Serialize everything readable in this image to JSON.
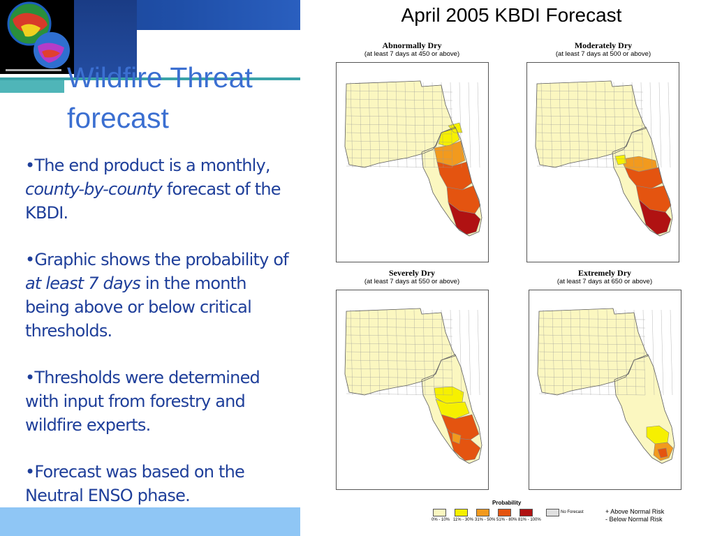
{
  "slide": {
    "title_line1": "Wildfire Threat",
    "title_line2": "forecast",
    "bullets": [
      {
        "parts": [
          "•The end product is a monthly, ",
          "county-by-county",
          " forecast of the KBDI."
        ]
      },
      {
        "parts": [
          "•Graphic shows the probability of ",
          "at least 7 days",
          " in the month being above or below critical thresholds."
        ]
      },
      {
        "text": "•Thresholds were determined with input from forestry and wildfire experts."
      },
      {
        "text": "•Forecast was based on the Neutral ENSO phase."
      }
    ]
  },
  "figure": {
    "title": "April 2005 KBDI Forecast",
    "panels": [
      {
        "heading": "Abnormally Dry",
        "subheading": "(at least 7 days at 450 or above)"
      },
      {
        "heading": "Moderately Dry",
        "subheading": "(at least 7 days at 500 or above)"
      },
      {
        "heading": "Severely Dry",
        "subheading": "(at least 7 days at 550 or above)"
      },
      {
        "heading": "Extremely Dry",
        "subheading": "(at least 7 days at 650 or above)"
      }
    ],
    "legend": {
      "title": "Probability",
      "classes": [
        {
          "label": "0% - 10%",
          "color": "#fbf7c0"
        },
        {
          "label": "11% - 30%",
          "color": "#f6f000"
        },
        {
          "label": "31% - 50%",
          "color": "#f29a1e"
        },
        {
          "label": "51% - 80%",
          "color": "#e45410"
        },
        {
          "label": "81% - 100%",
          "color": "#b01212"
        }
      ],
      "no_forecast": {
        "label": "No Forecast",
        "color": "#e0e0e0"
      },
      "above_normal": "+  Above Normal Risk",
      "below_normal": "-  Below Normal Risk"
    }
  },
  "colors": {
    "title": "#3b6fd1",
    "bullet_text": "#1f3f9a",
    "header_bar": "#1f4fa8",
    "teal_accent": "#3aa3a8",
    "bottom_bar": "#8fc6f5",
    "map_base": "#fbf7c0"
  }
}
